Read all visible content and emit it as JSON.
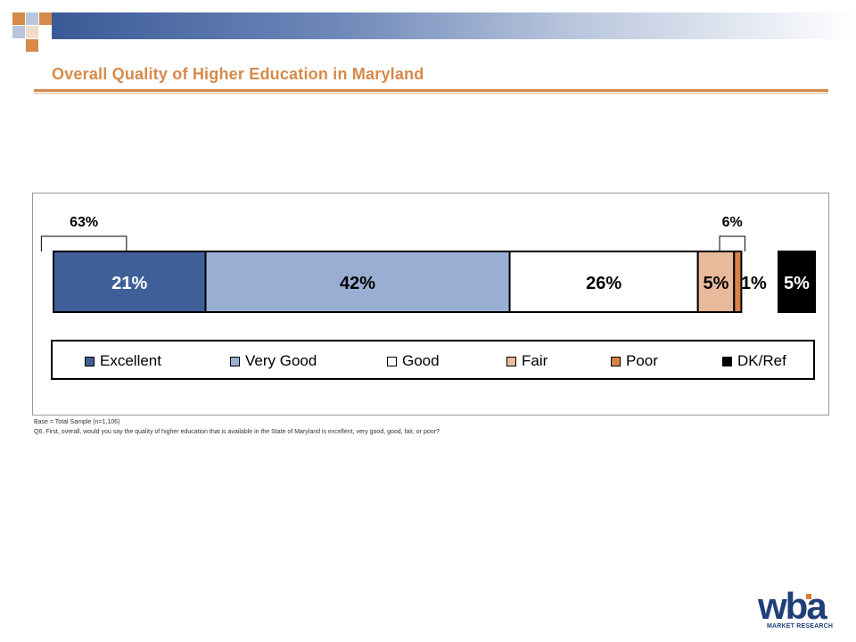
{
  "slide": {
    "title": "Overall Quality of Higher Education in Maryland",
    "footnote_base": "Base = Total Sample (n=1,106)",
    "footnote_question": "Q6. First, overall, would you say the quality of higher education that is available in the State of Maryland is excellent, very good, good, fair, or poor?",
    "logo_text": "wba",
    "logo_sub": "MARKET RESEARCH"
  },
  "chart_data": {
    "type": "bar",
    "orientation": "horizontal-stacked",
    "categories": [
      "Excellent",
      "Very Good",
      "Good",
      "Fair",
      "Poor",
      "DK/Ref"
    ],
    "series": [
      {
        "name": "Excellent",
        "value": 21,
        "label": "21%",
        "color": "#3f5f99",
        "text_color": "#ffffff"
      },
      {
        "name": "Very Good",
        "value": 42,
        "label": "42%",
        "color": "#9aaed4",
        "text_color": "#000000"
      },
      {
        "name": "Good",
        "value": 26,
        "label": "26%",
        "color": "#ffffff",
        "text_color": "#000000"
      },
      {
        "name": "Fair",
        "value": 5,
        "label": "5%",
        "color": "#e8b99a",
        "text_color": "#000000"
      },
      {
        "name": "Poor",
        "value": 1,
        "label": "1%",
        "color": "#d8824a",
        "text_color": "#000000"
      },
      {
        "name": "DK/Ref",
        "value": 5,
        "label": "5%",
        "color": "#000000",
        "text_color": "#ffffff",
        "separate": true
      }
    ],
    "brackets": [
      {
        "label": "63%",
        "from": "Excellent",
        "to": "Very Good"
      },
      {
        "label": "6%",
        "from": "Fair",
        "to": "Poor"
      }
    ],
    "legend": {
      "position": "bottom",
      "items": [
        "Excellent",
        "Very Good",
        "Good",
        "Fair",
        "Poor",
        "DK/Ref"
      ]
    }
  }
}
